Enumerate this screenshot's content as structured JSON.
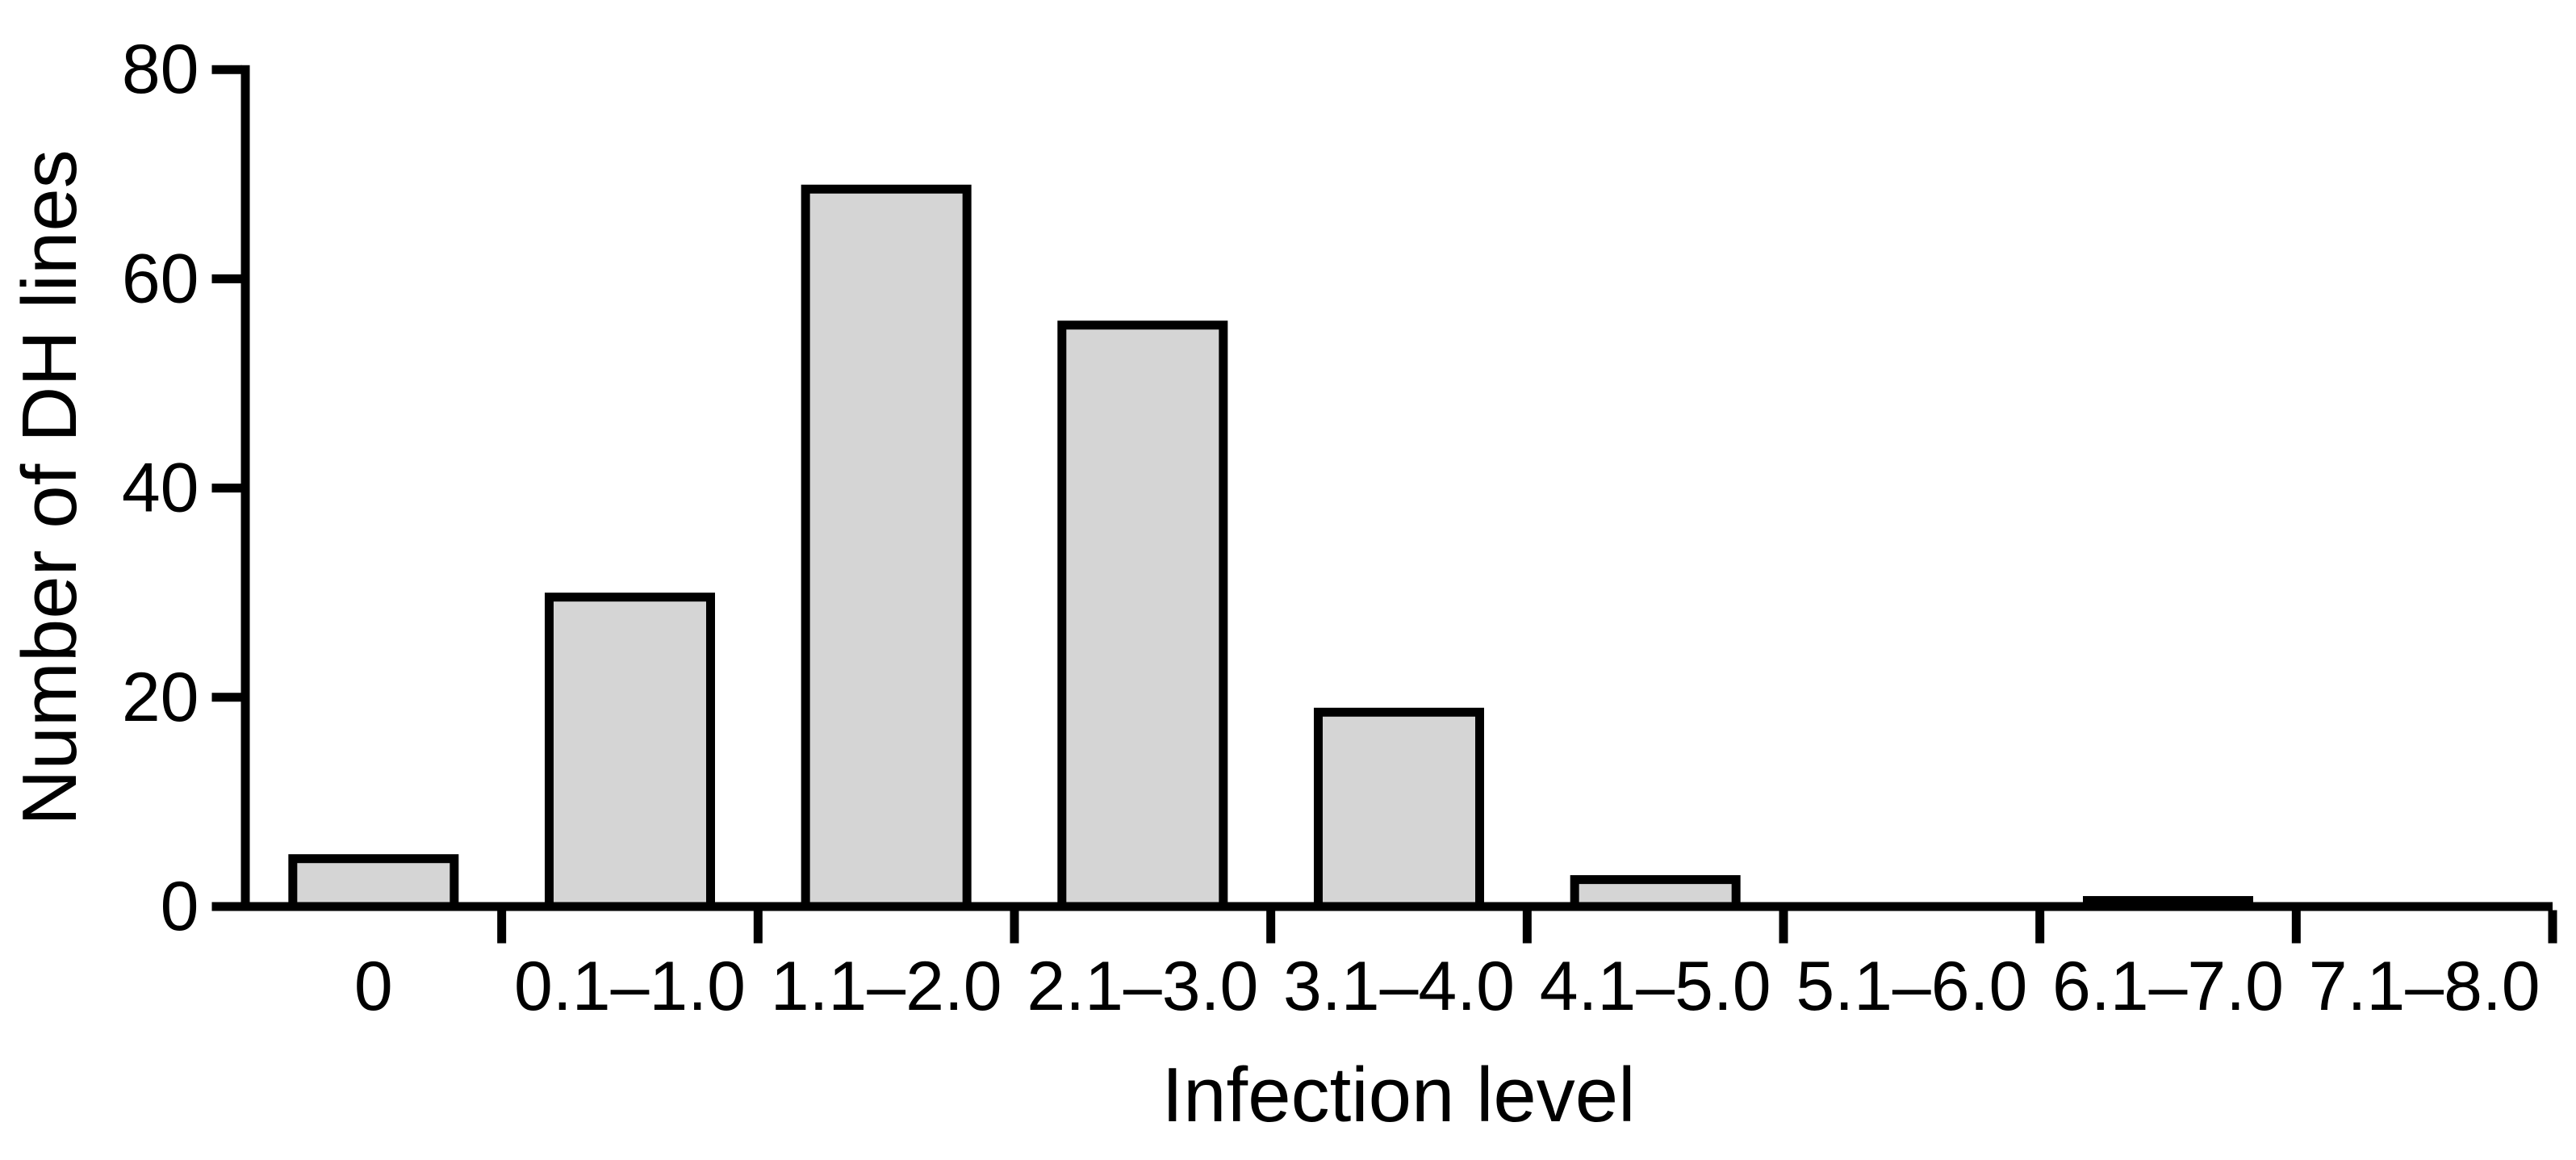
{
  "figure": {
    "background": "#ffffff"
  },
  "chart_data": {
    "type": "bar",
    "title": "",
    "xlabel": "Infection level",
    "ylabel": "Number of DH lines",
    "categories": [
      "0",
      "0.1–1.0",
      "1.1–2.0",
      "2.1–3.0",
      "3.1–4.0",
      "4.1–5.0",
      "5.1–6.0",
      "6.1–7.0",
      "7.1–8.0"
    ],
    "values": [
      5,
      30,
      69,
      56,
      19,
      3,
      0,
      1,
      0
    ],
    "ylim": [
      0,
      80
    ],
    "yticks": [
      0,
      20,
      40,
      60,
      80
    ],
    "ytick_labels": [
      "0",
      "20",
      "40",
      "60",
      "80"
    ],
    "grid": false,
    "legend": false,
    "bar_fill": "#d5d5d5",
    "bar_stroke": "#000000",
    "axis_color": "#000000",
    "text_color": "#000000"
  }
}
